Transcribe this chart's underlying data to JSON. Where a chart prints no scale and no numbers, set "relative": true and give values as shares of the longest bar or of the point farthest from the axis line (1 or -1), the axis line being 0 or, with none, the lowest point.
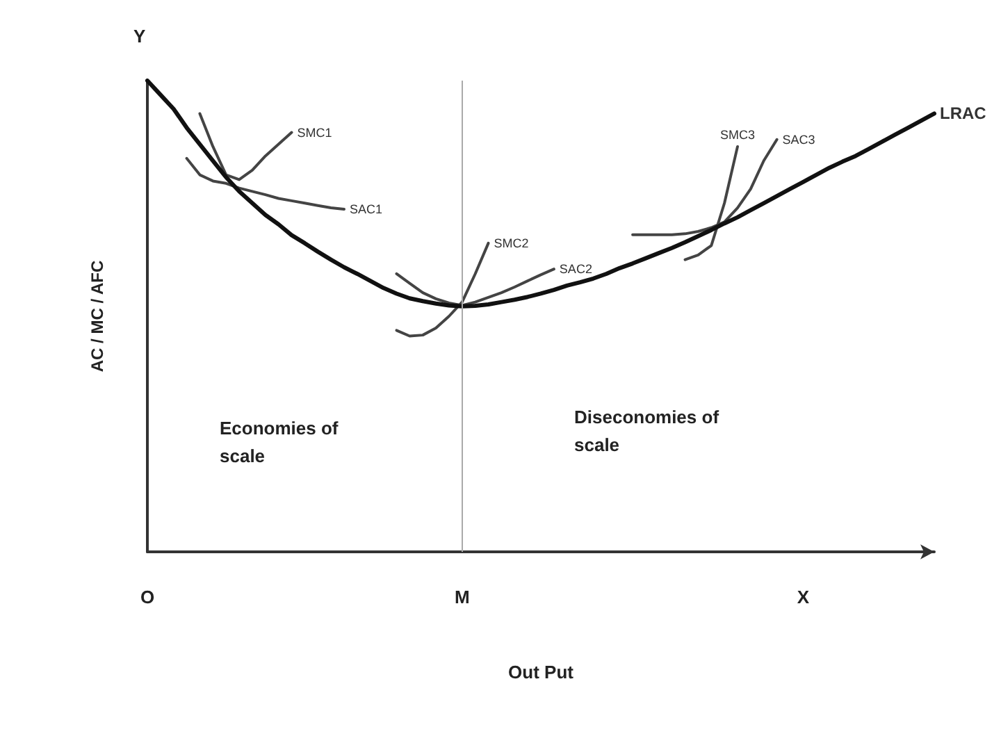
{
  "chart_data": {
    "type": "line",
    "relative": true,
    "xlabel": "Out Put",
    "ylabel": "AC / MC / AFC",
    "categories": [
      "O",
      null,
      null,
      null,
      null,
      null,
      null,
      null,
      null,
      null,
      null,
      null,
      null,
      null,
      null,
      null,
      null,
      null,
      null,
      null,
      null,
      null,
      null,
      null,
      "M",
      null,
      null,
      null,
      null,
      null,
      null,
      null,
      null,
      null,
      null,
      null,
      null,
      null,
      null,
      null,
      null,
      null,
      null,
      null,
      null,
      null,
      null,
      null,
      null,
      null,
      "X",
      null,
      null,
      null,
      null,
      null,
      null,
      null,
      null,
      null,
      null
    ],
    "series": [
      {
        "name": "LRAC",
        "color": "#111111",
        "values": [
          1.0,
          0.97,
          0.94,
          0.9,
          0.865,
          0.83,
          0.795,
          0.765,
          0.74,
          0.715,
          0.695,
          0.672,
          0.655,
          0.637,
          0.62,
          0.604,
          0.59,
          0.575,
          0.56,
          0.548,
          0.538,
          0.532,
          0.527,
          0.523,
          0.521,
          0.522,
          0.525,
          0.53,
          0.535,
          0.541,
          0.548,
          0.556,
          0.565,
          0.572,
          0.58,
          0.59,
          0.602,
          0.612,
          0.623,
          0.634,
          0.645,
          0.657,
          0.67,
          0.683,
          0.697,
          0.71,
          0.725,
          0.74,
          0.755,
          0.77,
          0.785,
          0.8,
          0.815,
          0.828,
          0.84,
          0.855,
          0.87,
          0.885,
          0.9,
          0.915,
          0.93
        ]
      },
      {
        "name": "SMC1",
        "color": "#444444",
        "values": [
          null,
          null,
          null,
          null,
          0.93,
          0.86,
          0.8,
          0.79,
          0.81,
          0.84,
          0.865,
          0.89,
          null,
          null,
          null,
          null,
          null,
          null,
          null,
          null,
          null,
          null,
          null,
          null,
          null,
          null,
          null,
          null,
          null,
          null,
          null,
          null,
          null,
          null,
          null,
          null,
          null,
          null,
          null,
          null,
          null,
          null,
          null,
          null,
          null,
          null,
          null,
          null,
          null,
          null,
          null,
          null,
          null,
          null,
          null,
          null,
          null,
          null,
          null,
          null,
          null
        ]
      },
      {
        "name": "SAC1",
        "color": "#444444",
        "values": [
          null,
          null,
          null,
          0.835,
          0.8,
          0.787,
          0.782,
          0.772,
          0.765,
          0.758,
          0.75,
          0.745,
          0.74,
          0.735,
          0.73,
          0.727,
          null,
          null,
          null,
          null,
          null,
          null,
          null,
          null,
          null,
          null,
          null,
          null,
          null,
          null,
          null,
          null,
          null,
          null,
          null,
          null,
          null,
          null,
          null,
          null,
          null,
          null,
          null,
          null,
          null,
          null,
          null,
          null,
          null,
          null,
          null,
          null,
          null,
          null,
          null,
          null,
          null,
          null,
          null,
          null,
          null
        ]
      },
      {
        "name": "SMC2",
        "color": "#444444",
        "values": [
          null,
          null,
          null,
          null,
          null,
          null,
          null,
          null,
          null,
          null,
          null,
          null,
          null,
          null,
          null,
          null,
          null,
          null,
          null,
          0.47,
          0.458,
          0.46,
          0.475,
          0.5,
          0.53,
          0.59,
          0.655,
          null,
          null,
          null,
          null,
          null,
          null,
          null,
          null,
          null,
          null,
          null,
          null,
          null,
          null,
          null,
          null,
          null,
          null,
          null,
          null,
          null,
          null,
          null,
          null,
          null,
          null,
          null,
          null,
          null,
          null,
          null,
          null,
          null,
          null
        ]
      },
      {
        "name": "SAC2",
        "color": "#444444",
        "values": [
          null,
          null,
          null,
          null,
          null,
          null,
          null,
          null,
          null,
          null,
          null,
          null,
          null,
          null,
          null,
          null,
          null,
          null,
          null,
          0.59,
          0.57,
          0.55,
          0.537,
          0.528,
          0.523,
          0.53,
          0.54,
          0.55,
          0.562,
          0.575,
          0.588,
          0.6,
          null,
          null,
          null,
          null,
          null,
          null,
          null,
          null,
          null,
          null,
          null,
          null,
          null,
          null,
          null,
          null,
          null,
          null,
          null,
          null,
          null,
          null,
          null,
          null,
          null,
          null,
          null,
          null,
          null
        ]
      },
      {
        "name": "SMC3",
        "color": "#444444",
        "values": [
          null,
          null,
          null,
          null,
          null,
          null,
          null,
          null,
          null,
          null,
          null,
          null,
          null,
          null,
          null,
          null,
          null,
          null,
          null,
          null,
          null,
          null,
          null,
          null,
          null,
          null,
          null,
          null,
          null,
          null,
          null,
          null,
          null,
          null,
          null,
          null,
          null,
          null,
          null,
          null,
          null,
          0.62,
          0.63,
          0.65,
          0.74,
          0.86,
          null,
          null,
          null,
          null,
          null,
          null,
          null,
          null,
          null,
          null,
          null,
          null,
          null,
          null,
          null
        ]
      },
      {
        "name": "SAC3",
        "color": "#444444",
        "values": [
          null,
          null,
          null,
          null,
          null,
          null,
          null,
          null,
          null,
          null,
          null,
          null,
          null,
          null,
          null,
          null,
          null,
          null,
          null,
          null,
          null,
          null,
          null,
          null,
          null,
          null,
          null,
          null,
          null,
          null,
          null,
          null,
          null,
          null,
          null,
          null,
          null,
          0.673,
          0.673,
          0.673,
          0.673,
          0.675,
          0.68,
          0.688,
          0.7,
          0.73,
          0.77,
          0.83,
          0.875,
          null,
          null,
          null,
          null,
          null,
          null,
          null,
          null,
          null,
          null,
          null,
          null
        ]
      }
    ],
    "ref_lines": [
      {
        "axis": "x",
        "value": "M",
        "color": "#aaaaaa"
      }
    ],
    "annotations": [
      "Y",
      "Economies of scale",
      "Diseconomies of scale"
    ],
    "grid": false,
    "legend": false,
    "marker": "none",
    "line_style": "solid"
  }
}
